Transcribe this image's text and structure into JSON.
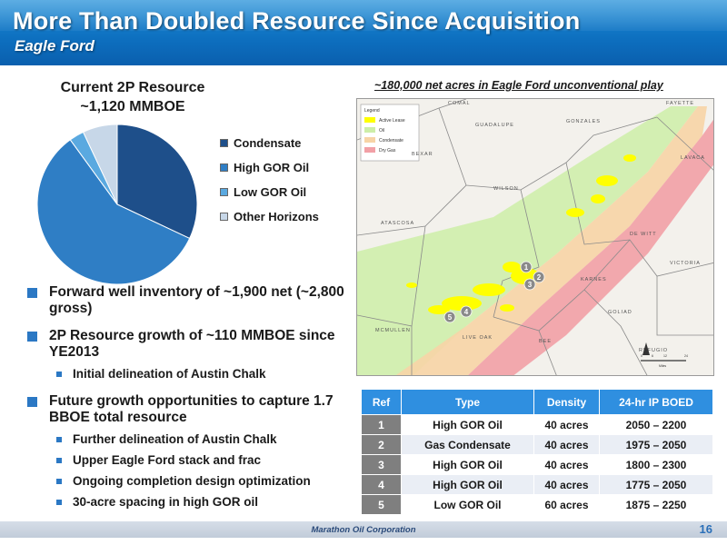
{
  "header": {
    "title": "More Than Doubled Resource Since Acquisition",
    "subtitle": "Eagle Ford"
  },
  "pie": {
    "title_line1": "Current 2P Resource",
    "title_line2": "~1,120 MMBOE"
  },
  "chart_data": {
    "type": "pie",
    "title": "Current 2P Resource ~1,120 MMBOE",
    "categories": [
      "Condensate",
      "High GOR Oil",
      "Low GOR Oil",
      "Other Horizons"
    ],
    "values": [
      32,
      58,
      3,
      7
    ],
    "colors": [
      "#1e4f8a",
      "#2f7ec5",
      "#5aa9e0",
      "#c7d7e8"
    ],
    "legend_position": "right"
  },
  "map": {
    "caption": "~180,000 net acres in Eagle Ford unconventional play",
    "legend_title": "Legend",
    "legend_items": [
      {
        "label": "Active Lease",
        "color": "#ffff00"
      },
      {
        "label": "Oil",
        "color": "#cdeea8"
      },
      {
        "label": "Condensate",
        "color": "#f7d4a6"
      },
      {
        "label": "Dry Gas",
        "color": "#f2a0a6"
      }
    ],
    "counties": [
      "COMAL",
      "GUADALUPE",
      "GONZALES",
      "FAYETTE",
      "BEXAR",
      "LAVACA",
      "WILSON",
      "ATASCOSA",
      "DE WITT",
      "KARNES",
      "VICTORIA",
      "MCMULLEN",
      "LIVE OAK",
      "BEE",
      "GOLIAD",
      "REFUGIO"
    ],
    "markers": [
      "1",
      "2",
      "3",
      "4",
      "5"
    ],
    "scale_labels": [
      "0",
      "6",
      "12",
      "24"
    ],
    "scale_unit": "Miles"
  },
  "bullets": [
    {
      "text": "Forward well inventory of ~1,900 net (~2,800 gross)",
      "subs": []
    },
    {
      "text": "2P Resource growth of ~110 MMBOE since YE2013",
      "subs": [
        "Initial delineation of Austin Chalk"
      ]
    },
    {
      "text": "Future growth opportunities to capture 1.7 BBOE total resource",
      "subs": [
        "Further delineation of Austin Chalk",
        "Upper Eagle Ford stack and frac",
        "Ongoing completion design optimization",
        "30-acre spacing in high GOR oil"
      ]
    }
  ],
  "table": {
    "headers": [
      "Ref",
      "Type",
      "Density",
      "24-hr IP BOED"
    ],
    "rows": [
      [
        "1",
        "High GOR Oil",
        "40 acres",
        "2050 – 2200"
      ],
      [
        "2",
        "Gas Condensate",
        "40 acres",
        "1975 – 2050"
      ],
      [
        "3",
        "High GOR Oil",
        "40 acres",
        "1800 – 2300"
      ],
      [
        "4",
        "High GOR Oil",
        "40 acres",
        "1775 – 2050"
      ],
      [
        "5",
        "Low GOR Oil",
        "60 acres",
        "1875 – 2250"
      ]
    ]
  },
  "footer": {
    "company": "Marathon Oil Corporation",
    "page": "16"
  }
}
